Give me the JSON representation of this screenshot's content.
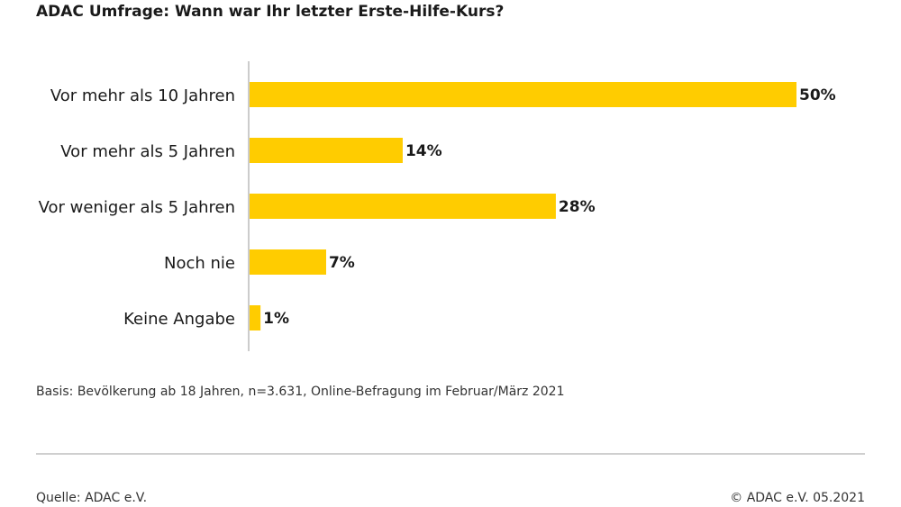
{
  "title": "ADAC Umfrage: Wann war Ihr letzter Erste-Hilfe-Kurs?",
  "basis": "Basis: Bevölkerung ab 18 Jahren, n=3.631, Online-Befragung im Februar/März 2021",
  "source": "Quelle: ADAC e.V.",
  "copyright": "© ADAC e.V. 05.2021",
  "colors": {
    "bar": "#ffcc00",
    "axis": "#cccccc",
    "text": "#1a1a1a"
  },
  "chart_data": {
    "type": "bar",
    "orientation": "horizontal",
    "categories": [
      "Vor mehr als 10 Jahren",
      "Vor mehr als 5 Jahren",
      "Vor weniger als 5 Jahren",
      "Noch nie",
      "Keine Angabe"
    ],
    "values": [
      50,
      14,
      28,
      7,
      1
    ],
    "value_labels": [
      "50%",
      "14%",
      "28%",
      "7%",
      "1%"
    ],
    "xlim": [
      0,
      50
    ],
    "grid": false,
    "legend": "none"
  }
}
